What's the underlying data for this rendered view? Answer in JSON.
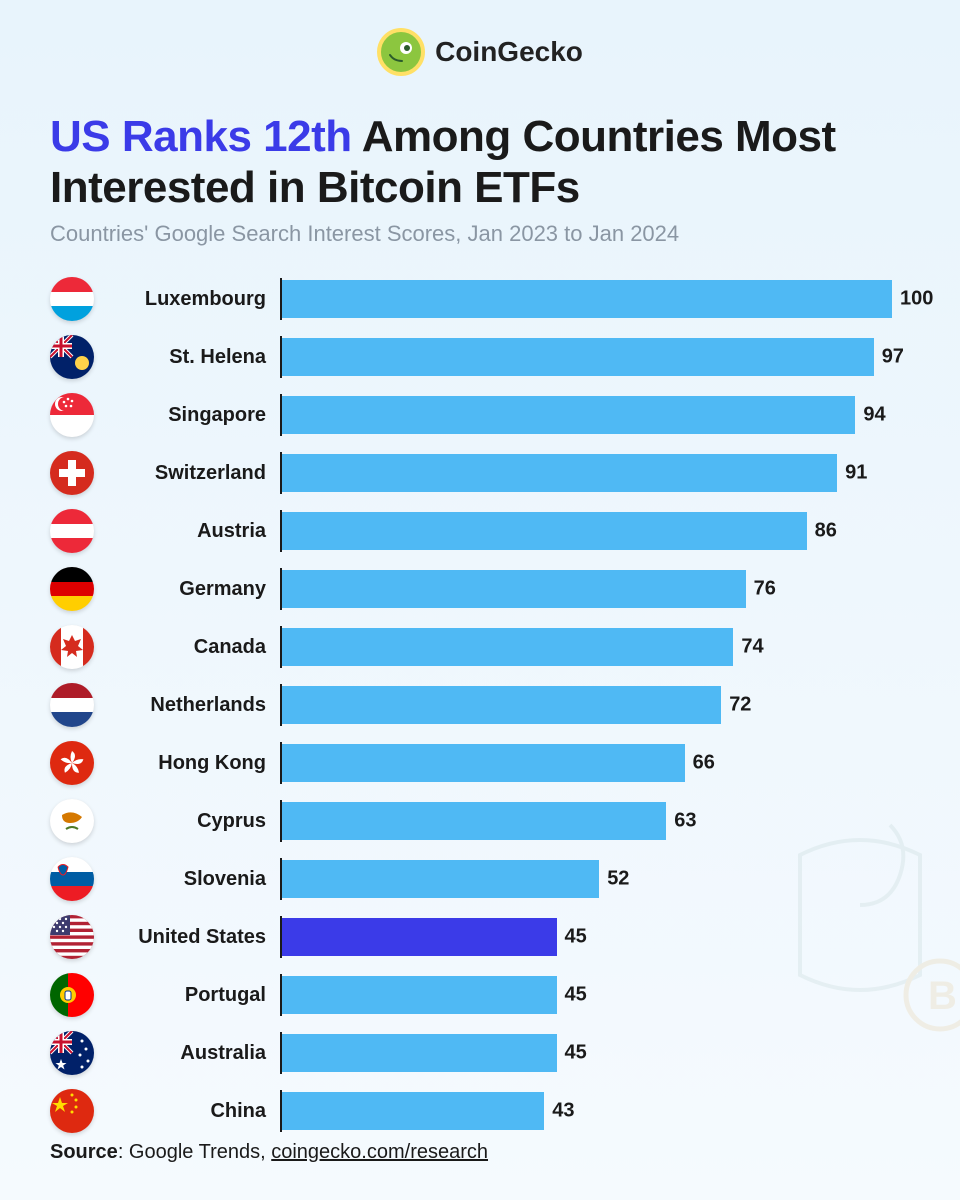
{
  "brand": {
    "name": "CoinGecko"
  },
  "title": {
    "highlight": "US Ranks 12th",
    "rest": " Among Countries Most Interested in Bitcoin ETFs"
  },
  "subtitle": "Countries' Google Search Interest Scores, Jan 2023 to Jan 2024",
  "chart": {
    "type": "bar-horizontal",
    "max_value": 100,
    "bar_color": "#4fb9f4",
    "highlight_color": "#3b3be8",
    "background_gradient": [
      "#e8f4fc",
      "#f5fafe"
    ],
    "axis_color": "#1a1a1a",
    "label_fontsize": 20,
    "value_fontsize": 20,
    "rows": [
      {
        "country": "Luxembourg",
        "value": 100,
        "highlight": false,
        "flag": "lux"
      },
      {
        "country": "St. Helena",
        "value": 97,
        "highlight": false,
        "flag": "sthelena"
      },
      {
        "country": "Singapore",
        "value": 94,
        "highlight": false,
        "flag": "singapore"
      },
      {
        "country": "Switzerland",
        "value": 91,
        "highlight": false,
        "flag": "swiss"
      },
      {
        "country": "Austria",
        "value": 86,
        "highlight": false,
        "flag": "austria"
      },
      {
        "country": "Germany",
        "value": 76,
        "highlight": false,
        "flag": "germany"
      },
      {
        "country": "Canada",
        "value": 74,
        "highlight": false,
        "flag": "canada"
      },
      {
        "country": "Netherlands",
        "value": 72,
        "highlight": false,
        "flag": "netherlands"
      },
      {
        "country": "Hong Kong",
        "value": 66,
        "highlight": false,
        "flag": "hongkong"
      },
      {
        "country": "Cyprus",
        "value": 63,
        "highlight": false,
        "flag": "cyprus"
      },
      {
        "country": "Slovenia",
        "value": 52,
        "highlight": false,
        "flag": "slovenia"
      },
      {
        "country": "United States",
        "value": 45,
        "highlight": true,
        "flag": "usa"
      },
      {
        "country": "Portugal",
        "value": 45,
        "highlight": false,
        "flag": "portugal"
      },
      {
        "country": "Australia",
        "value": 45,
        "highlight": false,
        "flag": "australia"
      },
      {
        "country": "China",
        "value": 43,
        "highlight": false,
        "flag": "china"
      }
    ]
  },
  "source": {
    "label": "Source",
    "text": ": Google Trends, ",
    "link": "coingecko.com/research"
  }
}
